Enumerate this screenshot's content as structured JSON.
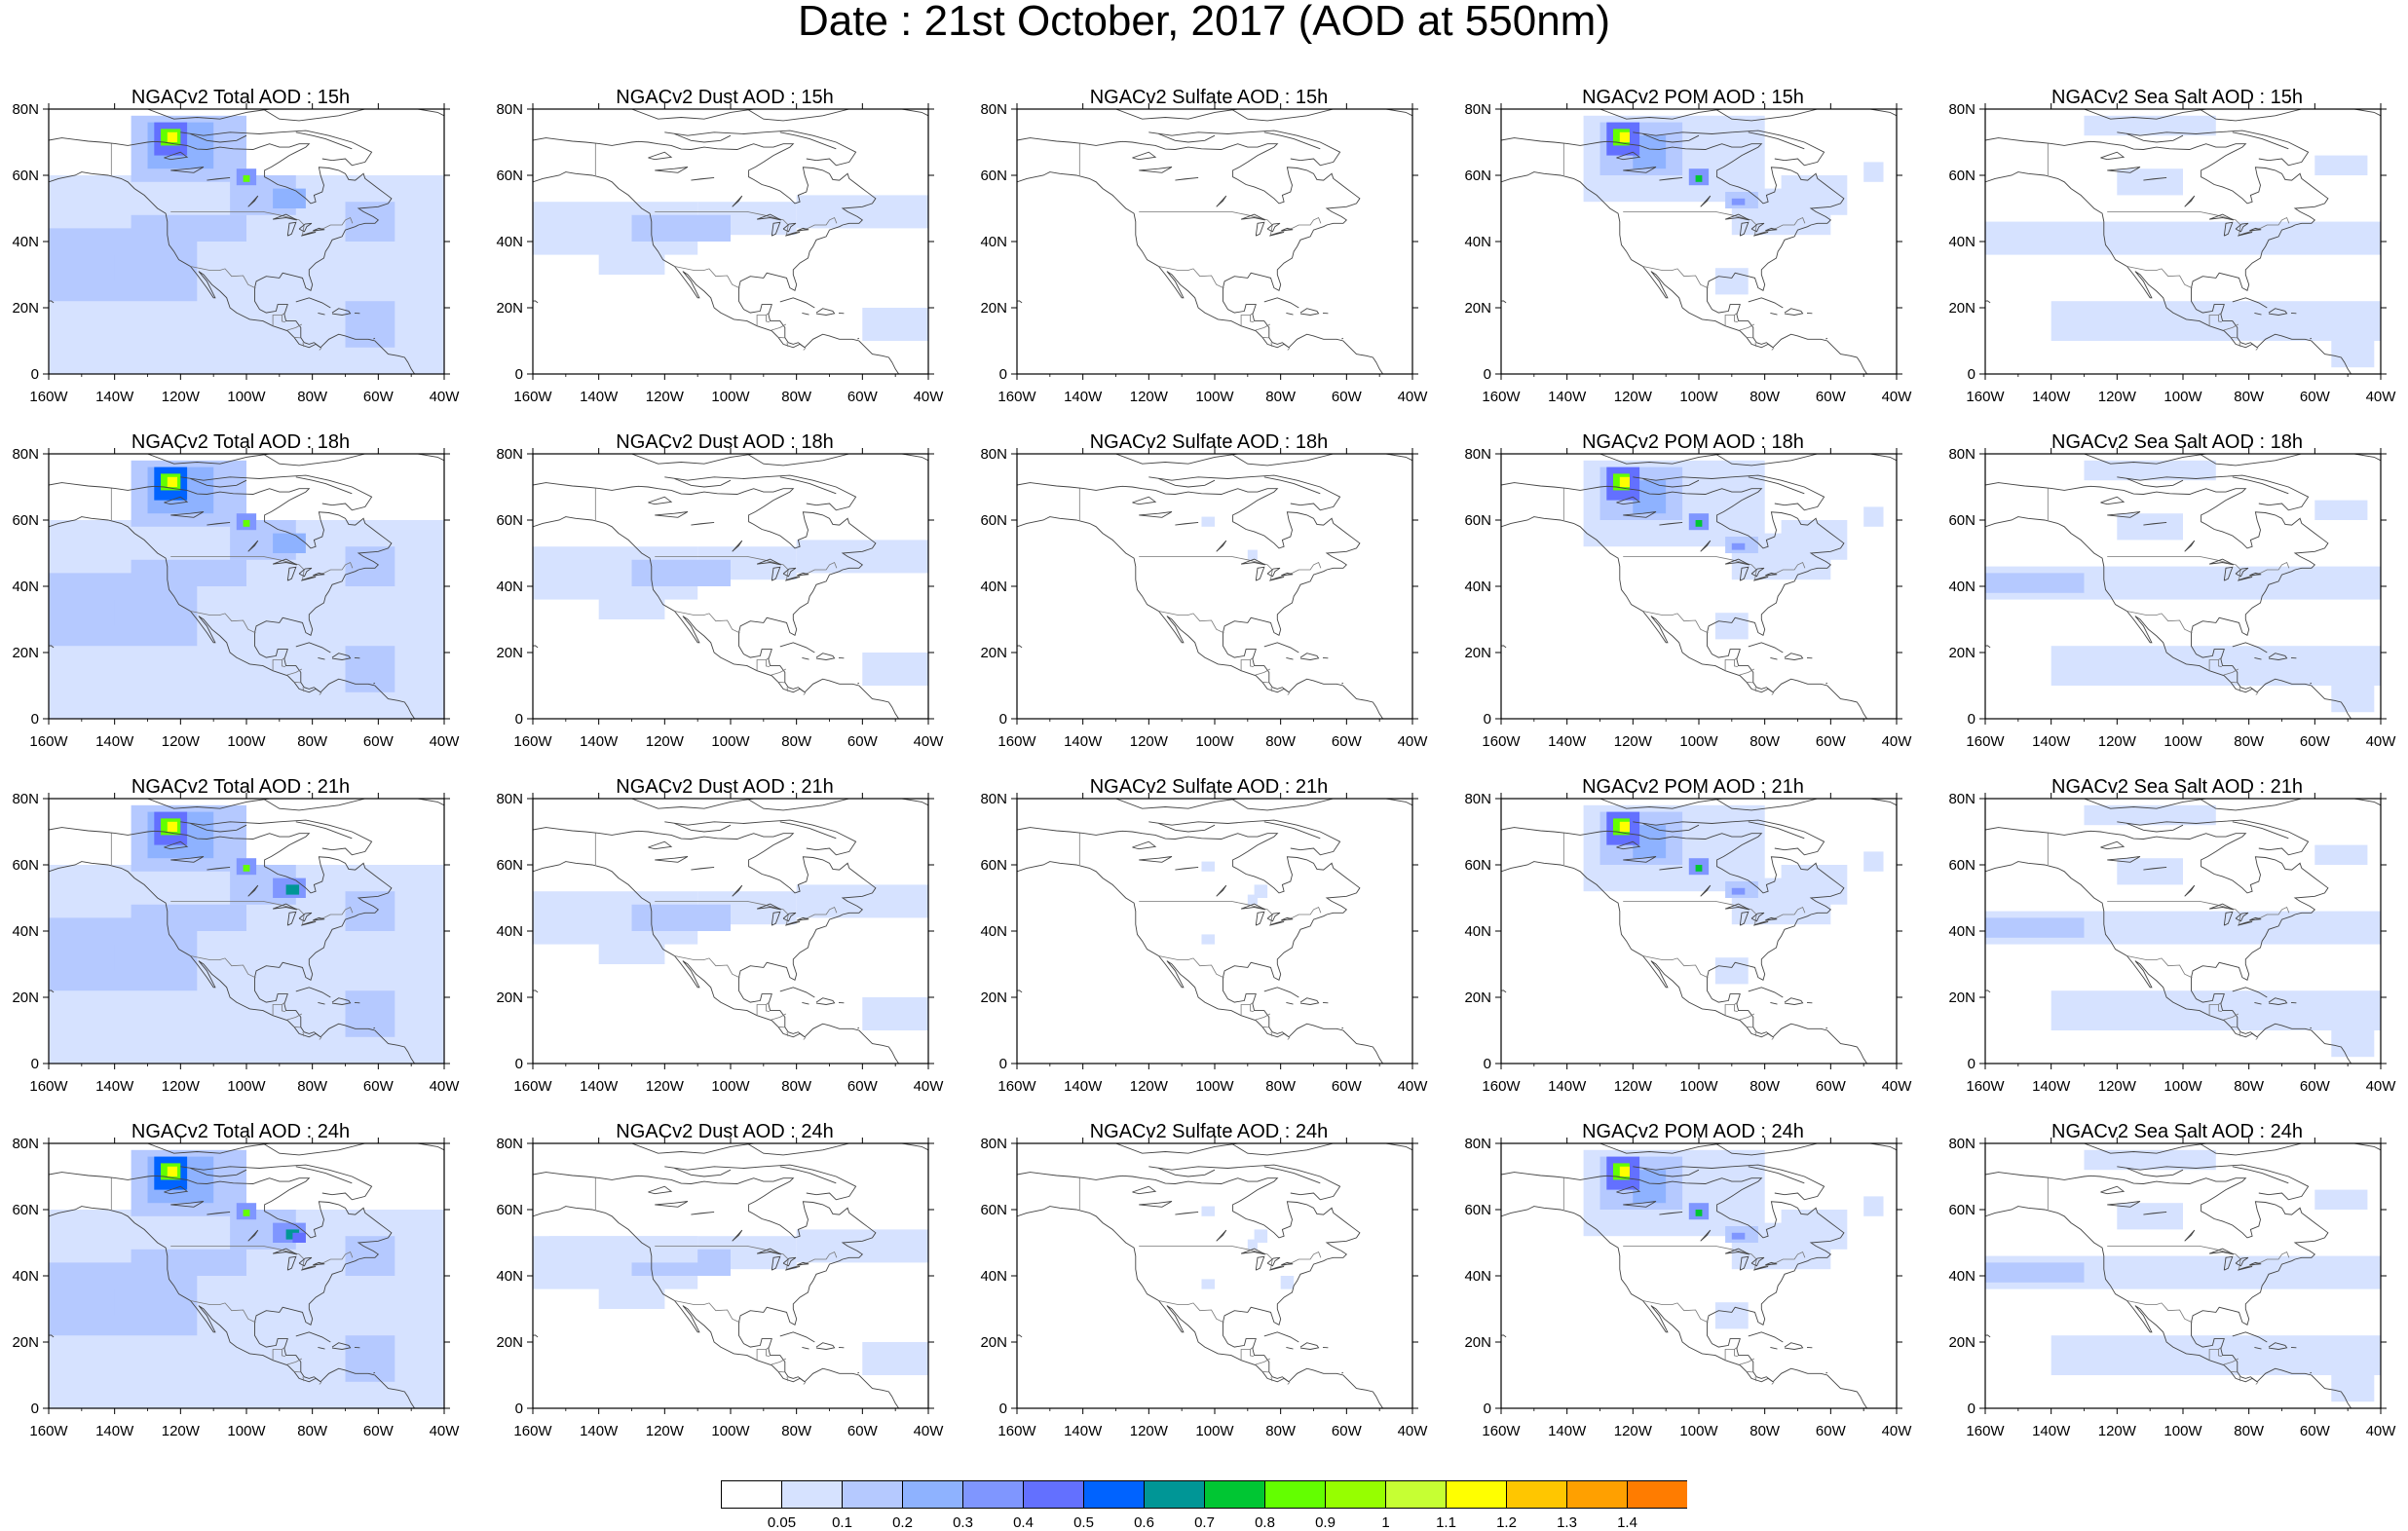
{
  "title": "Date : 21st October, 2017 (AOD at 550nm)",
  "panels": [
    {
      "title": "NGACv2 Total AOD : 15h",
      "species": "total"
    },
    {
      "title": "NGACv2 Dust AOD : 15h",
      "species": "dust"
    },
    {
      "title": "NGACv2 Sulfate AOD : 15h",
      "species": "sulfate"
    },
    {
      "title": "NGACv2 POM AOD : 15h",
      "species": "pom"
    },
    {
      "title": "NGACv2 Sea Salt AOD : 15h",
      "species": "seasalt"
    },
    {
      "title": "NGACv2 Total AOD : 18h",
      "species": "total"
    },
    {
      "title": "NGACv2 Dust AOD : 18h",
      "species": "dust"
    },
    {
      "title": "NGACv2 Sulfate AOD : 18h",
      "species": "sulfate"
    },
    {
      "title": "NGACv2 POM AOD : 18h",
      "species": "pom"
    },
    {
      "title": "NGACv2 Sea Salt AOD : 18h",
      "species": "seasalt"
    },
    {
      "title": "NGACv2 Total AOD : 21h",
      "species": "total"
    },
    {
      "title": "NGACv2 Dust AOD : 21h",
      "species": "dust"
    },
    {
      "title": "NGACv2 Sulfate AOD : 21h",
      "species": "sulfate"
    },
    {
      "title": "NGACv2 POM AOD : 21h",
      "species": "pom"
    },
    {
      "title": "NGACv2 Sea Salt AOD : 21h",
      "species": "seasalt"
    },
    {
      "title": "NGACv2 Total AOD : 24h",
      "species": "total"
    },
    {
      "title": "NGACv2 Dust AOD : 24h",
      "species": "dust"
    },
    {
      "title": "NGACv2 Sulfate AOD : 24h",
      "species": "sulfate"
    },
    {
      "title": "NGACv2 POM AOD : 24h",
      "species": "pom"
    },
    {
      "title": "NGACv2 Sea Salt  AOD : 24h",
      "species": "seasalt"
    }
  ],
  "map": {
    "lon_range": [
      -160,
      -40
    ],
    "lat_range": [
      0,
      80
    ],
    "x_tick_labels": [
      "160W",
      "140W",
      "120W",
      "100W",
      "80W",
      "60W",
      "40W"
    ],
    "y_tick_labels": [
      "0",
      "20N",
      "40N",
      "60N",
      "80N"
    ]
  },
  "colorbar": {
    "colors": [
      "#ffffff",
      "#d6e2ff",
      "#b5c9ff",
      "#8eb2ff",
      "#7f96ff",
      "#6370ff",
      "#0063ff",
      "#009696",
      "#00c633",
      "#63ff00",
      "#96ff00",
      "#c6ff33",
      "#ffff00",
      "#ffc600",
      "#ffa000",
      "#ff7c00",
      "#ff1900"
    ],
    "labels": [
      "0.05",
      "0.1",
      "0.2",
      "0.3",
      "0.4",
      "0.5",
      "0.6",
      "0.7",
      "0.8",
      "0.9",
      "1",
      "1.1",
      "1.2",
      "1.3",
      "1.4"
    ]
  }
}
